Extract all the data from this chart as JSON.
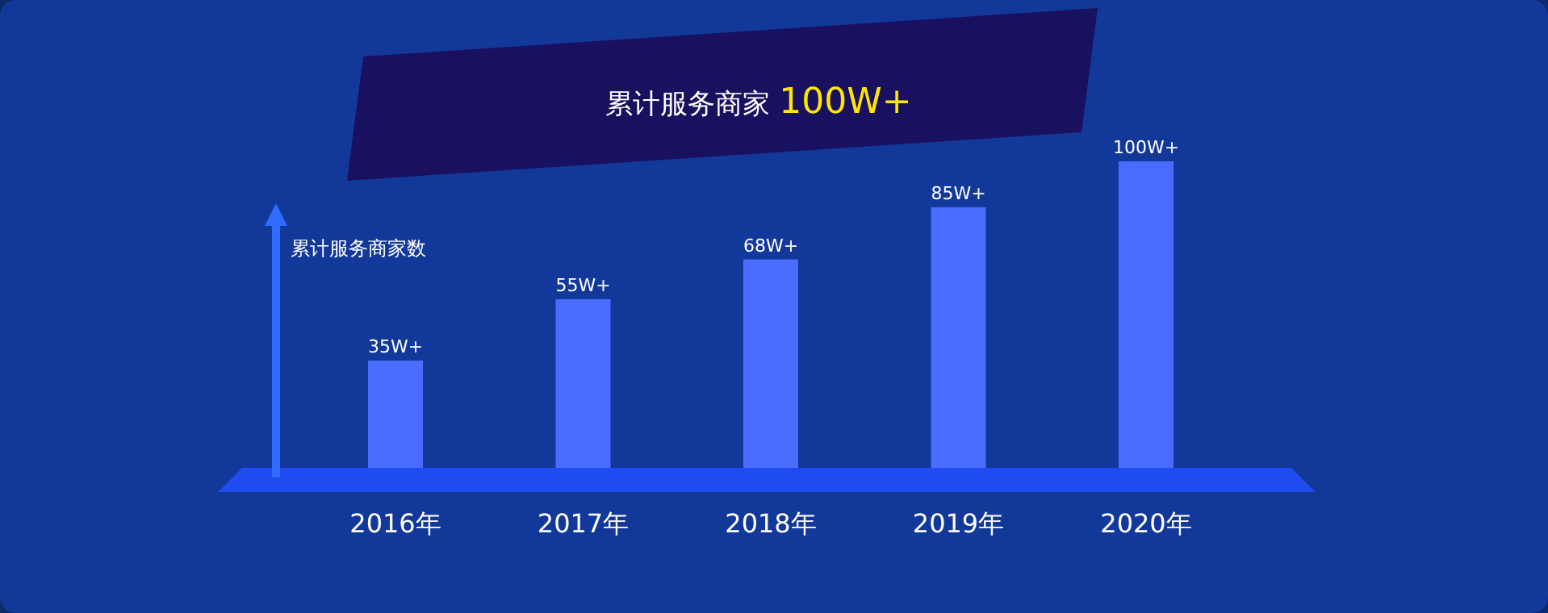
{
  "chart_data": {
    "type": "bar",
    "title": "累计服务商家 100W+",
    "ylabel": "累计服务商家数",
    "categories": [
      "2016年",
      "2017年",
      "2018年",
      "2019年",
      "2020年"
    ],
    "values": [
      35,
      55,
      68,
      85,
      100
    ],
    "value_labels": [
      "35W+",
      "55W+",
      "68W+",
      "85W+",
      "100W+"
    ],
    "color": "#4a6cff"
  }
}
